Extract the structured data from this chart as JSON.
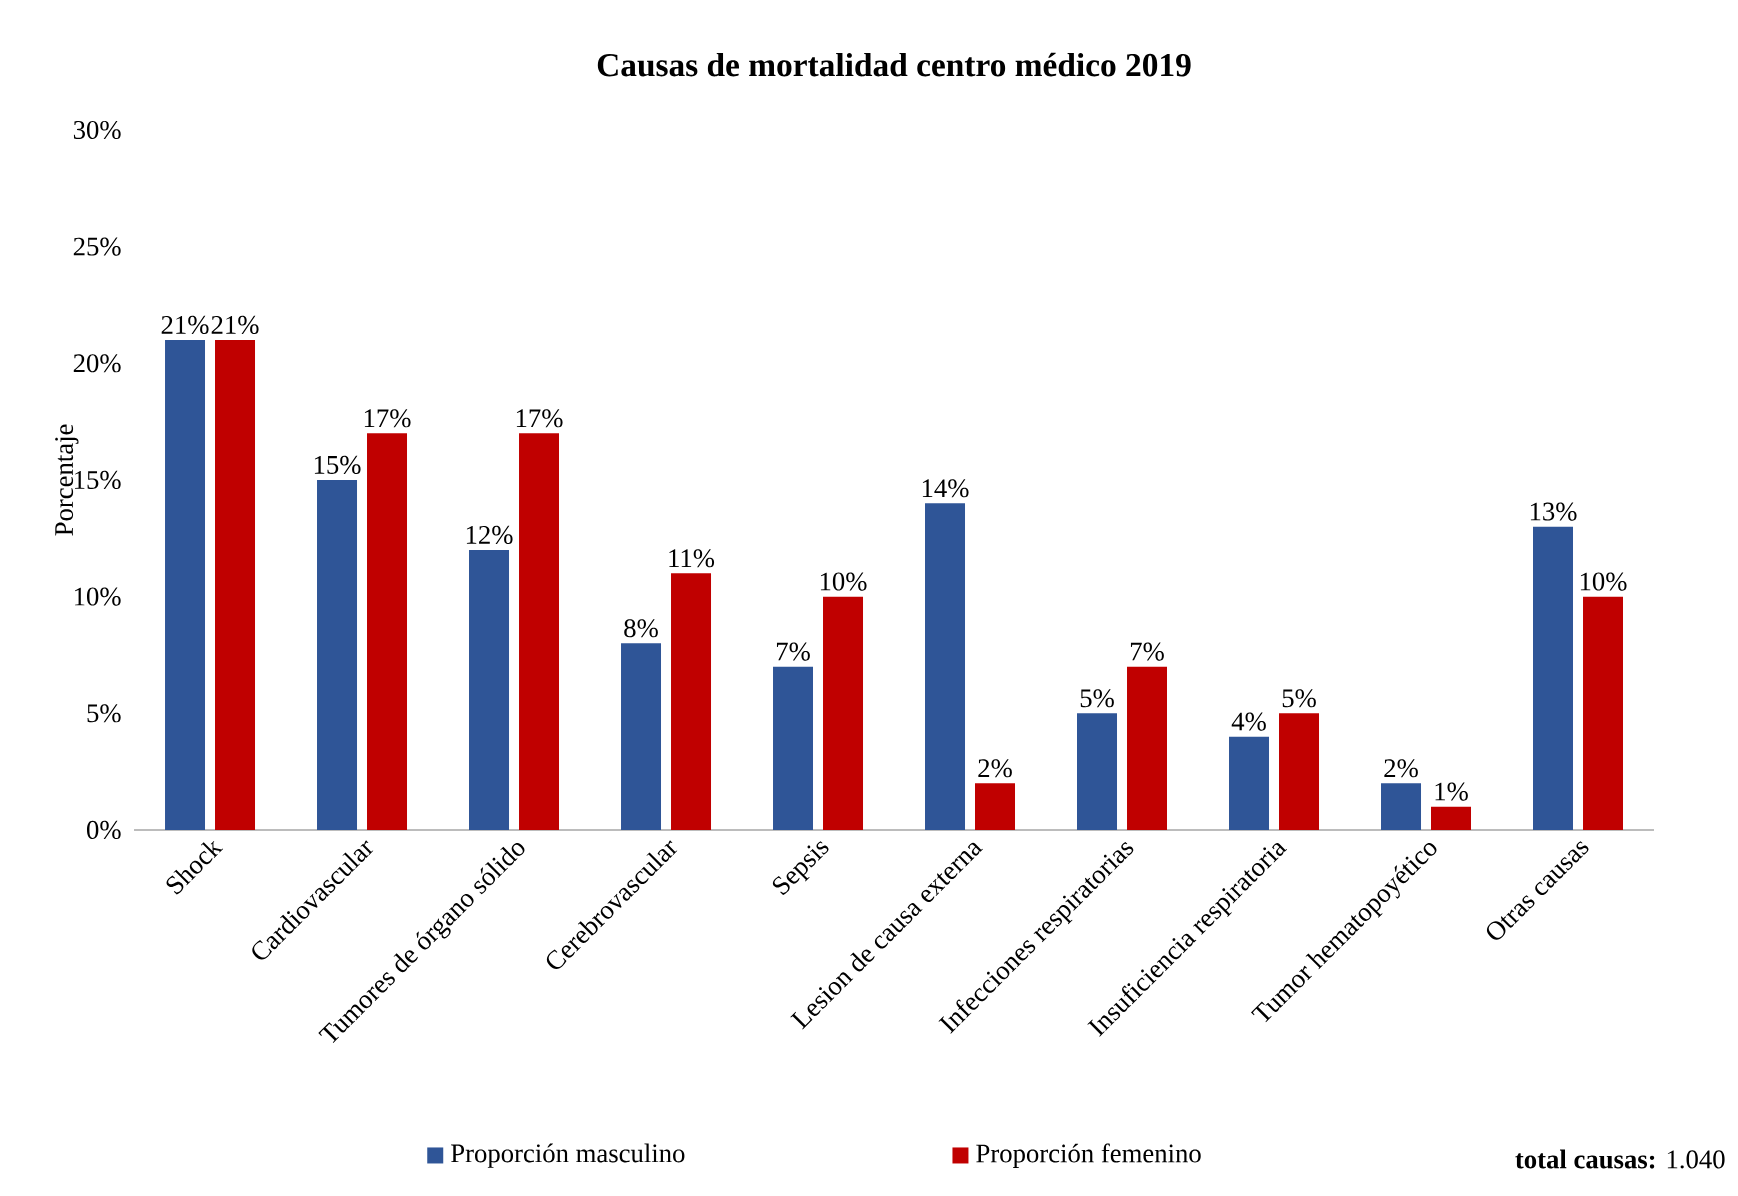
{
  "chart_data": {
    "type": "bar",
    "title": "Causas de mortalidad centro médico 2019",
    "ylabel": "Porcentaje",
    "categories": [
      "Shock",
      "Cardiovascular",
      "Tumores de órgano sólido",
      "Cerebrovascular",
      "Sepsis",
      "Lesion de causa externa",
      "Infecciones respiratorias",
      "Insuficiencia respiratoria",
      "Tumor hematopoyético",
      "Otras causas"
    ],
    "series": [
      {
        "name": "Proporción masculino",
        "color": "#2f5597",
        "values": [
          21,
          15,
          12,
          8,
          7,
          14,
          5,
          4,
          2,
          13
        ],
        "value_labels": [
          "21%",
          "15%",
          "12%",
          "8%",
          "7%",
          "14%",
          "5%",
          "4%",
          "2%",
          "13%"
        ]
      },
      {
        "name": "Proporción femenino",
        "color": "#c00000",
        "values": [
          21,
          17,
          17,
          11,
          10,
          2,
          7,
          5,
          1,
          10
        ],
        "value_labels": [
          "21%",
          "17%",
          "17%",
          "11%",
          "10%",
          "2%",
          "7%",
          "5%",
          "1%",
          "10%"
        ]
      }
    ],
    "ylim": [
      0,
      30
    ],
    "yticks": [
      {
        "value": 0,
        "label": "0%"
      },
      {
        "value": 5,
        "label": "5%"
      },
      {
        "value": 10,
        "label": "10%"
      },
      {
        "value": 15,
        "label": "15%"
      },
      {
        "value": 20,
        "label": "20%"
      },
      {
        "value": 25,
        "label": "25%"
      },
      {
        "value": 30,
        "label": "30%"
      }
    ],
    "grid": false,
    "legend": "bottom",
    "annotations": [
      "**total causas:** 1.040"
    ]
  }
}
